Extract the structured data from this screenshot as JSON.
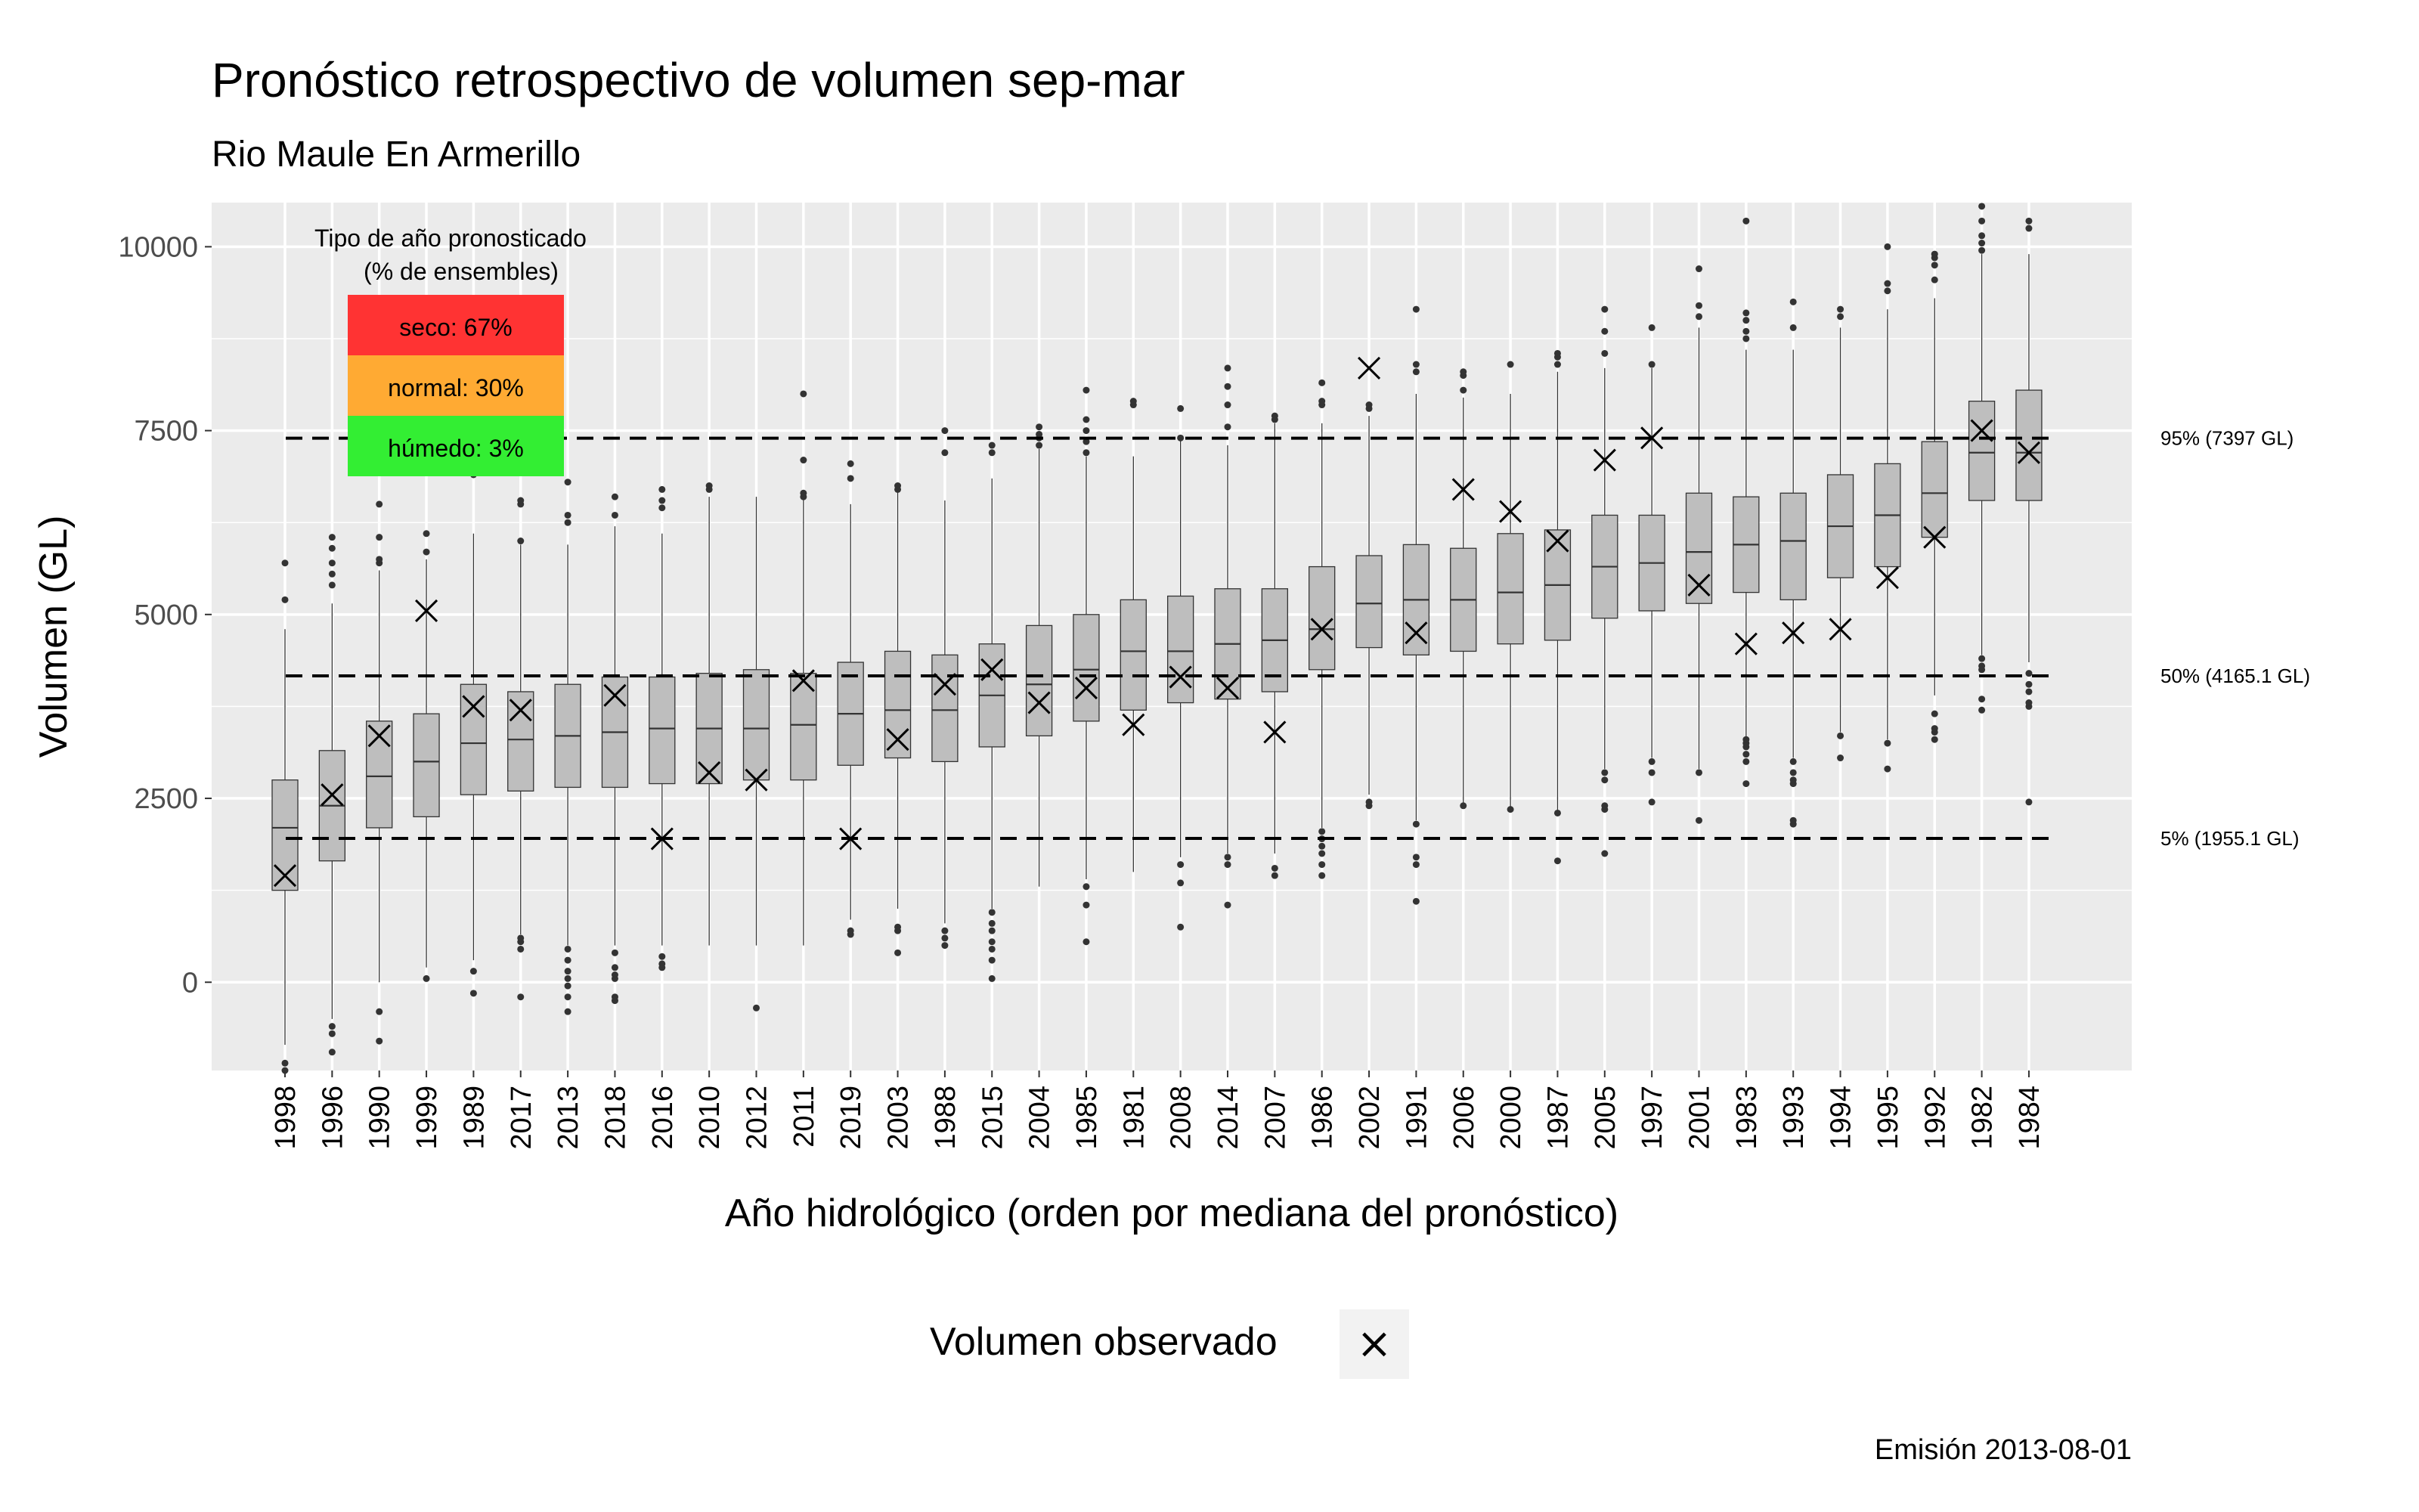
{
  "chart_data": {
    "type": "boxplot",
    "title": "Pronóstico retrospectivo de volumen sep-mar",
    "subtitle": "Rio Maule En Armerillo",
    "xlabel": "Año hidrológico (orden por mediana del pronóstico)",
    "ylabel": "Volumen (GL)",
    "ylim": [
      -1200,
      10600
    ],
    "yticks": [
      0,
      2500,
      5000,
      7500,
      10000
    ],
    "grid": true,
    "caption": "Emisión 2013-08-01",
    "highlight_category": "2013",
    "highlight_color": "#ff0000",
    "legend": {
      "title": "Volumen observado",
      "symbol": "×",
      "position": "bottom"
    },
    "info_box": {
      "title_line1": "Tipo de año pronosticado",
      "title_line2": "(% de ensembles)",
      "items": [
        {
          "label": "seco: 67%",
          "color": "#ff3333"
        },
        {
          "label": "normal: 30%",
          "color": "#ffaa33"
        },
        {
          "label": "húmedo: 3%",
          "color": "#33ee33"
        }
      ]
    },
    "reference_lines": [
      {
        "value": 7397,
        "label": "95% (7397 GL)"
      },
      {
        "value": 4165.1,
        "label": "50% (4165.1 GL)"
      },
      {
        "value": 1955.1,
        "label": "5% (1955.1 GL)"
      }
    ],
    "categories": [
      "1998",
      "1996",
      "1990",
      "1999",
      "1989",
      "2017",
      "2013",
      "2018",
      "2016",
      "2010",
      "2012",
      "2011",
      "2019",
      "2003",
      "1988",
      "2015",
      "2004",
      "1985",
      "1981",
      "2008",
      "2014",
      "2007",
      "1986",
      "2002",
      "1991",
      "2006",
      "2000",
      "1987",
      "2005",
      "1997",
      "2001",
      "1983",
      "1993",
      "1994",
      "1995",
      "1992",
      "1982",
      "1984"
    ],
    "boxes": [
      {
        "q1": 1250,
        "median": 2100,
        "q3": 2750,
        "wlo": -850,
        "whi": 4800,
        "outliers": [
          -1100,
          -1200,
          5200,
          5700
        ],
        "observed": 1450
      },
      {
        "q1": 1650,
        "median": 2400,
        "q3": 3150,
        "wlo": -500,
        "whi": 5150,
        "outliers": [
          -600,
          -700,
          -950,
          5400,
          5550,
          5700,
          5900,
          6050
        ],
        "observed": 2550
      },
      {
        "q1": 2100,
        "median": 2800,
        "q3": 3550,
        "wlo": 0,
        "whi": 5600,
        "outliers": [
          -400,
          -800,
          5700,
          5750,
          6050,
          6500
        ],
        "observed": 3350
      },
      {
        "q1": 2250,
        "median": 3000,
        "q3": 3650,
        "wlo": 200,
        "whi": 5750,
        "outliers": [
          50,
          5850,
          6100
        ],
        "observed": 5050
      },
      {
        "q1": 2550,
        "median": 3250,
        "q3": 4050,
        "wlo": 300,
        "whi": 6100,
        "outliers": [
          -150,
          150,
          6900,
          6950
        ],
        "observed": 3750
      },
      {
        "q1": 2600,
        "median": 3300,
        "q3": 3950,
        "wlo": 650,
        "whi": 5950,
        "outliers": [
          -200,
          450,
          550,
          600,
          6000,
          6500,
          6550
        ],
        "observed": 3700
      },
      {
        "q1": 2650,
        "median": 3350,
        "q3": 4050,
        "wlo": 500,
        "whi": 5950,
        "outliers": [
          -400,
          -200,
          -50,
          50,
          150,
          300,
          450,
          6250,
          6350,
          6800
        ],
        "observed": null
      },
      {
        "q1": 2650,
        "median": 3400,
        "q3": 4150,
        "wlo": 500,
        "whi": 6200,
        "outliers": [
          -250,
          -200,
          50,
          100,
          200,
          400,
          6350,
          6600
        ],
        "observed": 3900
      },
      {
        "q1": 2700,
        "median": 3450,
        "q3": 4150,
        "wlo": 500,
        "whi": 6100,
        "outliers": [
          200,
          250,
          350,
          6450,
          6550,
          6700
        ],
        "observed": 1950
      },
      {
        "q1": 2700,
        "median": 3450,
        "q3": 4200,
        "wlo": 500,
        "whi": 6600,
        "outliers": [
          6700,
          6750
        ],
        "observed": 2850
      },
      {
        "q1": 2750,
        "median": 3450,
        "q3": 4250,
        "wlo": 500,
        "whi": 6600,
        "outliers": [
          -350
        ],
        "observed": 2750
      },
      {
        "q1": 2750,
        "median": 3500,
        "q3": 4200,
        "wlo": 500,
        "whi": 6600,
        "outliers": [
          6600,
          6650,
          7100,
          8000
        ],
        "observed": 4100
      },
      {
        "q1": 2950,
        "median": 3650,
        "q3": 4350,
        "wlo": 850,
        "whi": 6500,
        "outliers": [
          650,
          700,
          6850,
          7050
        ],
        "observed": 1950
      },
      {
        "q1": 3050,
        "median": 3700,
        "q3": 4500,
        "wlo": 1000,
        "whi": 6700,
        "outliers": [
          400,
          700,
          750,
          6700,
          6750
        ],
        "observed": 3300
      },
      {
        "q1": 3000,
        "median": 3700,
        "q3": 4450,
        "wlo": 800,
        "whi": 6550,
        "outliers": [
          500,
          600,
          700,
          7200,
          7500
        ],
        "observed": 4050
      },
      {
        "q1": 3200,
        "median": 3900,
        "q3": 4600,
        "wlo": 1000,
        "whi": 6850,
        "outliers": [
          50,
          300,
          450,
          550,
          700,
          800,
          950,
          7200,
          7300
        ],
        "observed": 4250
      },
      {
        "q1": 3350,
        "median": 4050,
        "q3": 4850,
        "wlo": 1300,
        "whi": 7250,
        "outliers": [
          7300,
          7400,
          7450,
          7550
        ],
        "observed": 3800
      },
      {
        "q1": 3550,
        "median": 4250,
        "q3": 5000,
        "wlo": 1400,
        "whi": 7150,
        "outliers": [
          550,
          1050,
          1300,
          7200,
          7350,
          7500,
          7650,
          8050
        ],
        "observed": 4000
      },
      {
        "q1": 3700,
        "median": 4500,
        "q3": 5200,
        "wlo": 1500,
        "whi": 7150,
        "outliers": [
          7850,
          7900
        ],
        "observed": 3500
      },
      {
        "q1": 3800,
        "median": 4500,
        "q3": 5250,
        "wlo": 1700,
        "whi": 7400,
        "outliers": [
          750,
          1350,
          1600,
          7400,
          7800
        ],
        "observed": 4150
      },
      {
        "q1": 3850,
        "median": 4600,
        "q3": 5350,
        "wlo": 1750,
        "whi": 7300,
        "outliers": [
          1050,
          1600,
          1700,
          7550,
          7850,
          8100,
          8350
        ],
        "observed": 4000
      },
      {
        "q1": 3950,
        "median": 4650,
        "q3": 5350,
        "wlo": 1750,
        "whi": 7600,
        "outliers": [
          1450,
          1550,
          7650,
          7700
        ],
        "observed": 3400
      },
      {
        "q1": 4250,
        "median": 4800,
        "q3": 5650,
        "wlo": 2100,
        "whi": 7600,
        "outliers": [
          1450,
          1600,
          1750,
          1850,
          1950,
          2050,
          7850,
          7900,
          8150
        ],
        "observed": 4800
      },
      {
        "q1": 4550,
        "median": 5150,
        "q3": 5800,
        "wlo": 2550,
        "whi": 7700,
        "outliers": [
          2400,
          2450,
          7800,
          7850
        ],
        "observed": 8350
      },
      {
        "q1": 4450,
        "median": 5200,
        "q3": 5950,
        "wlo": 2200,
        "whi": 8000,
        "outliers": [
          1100,
          1600,
          1700,
          2150,
          8300,
          8400,
          9150
        ],
        "observed": 4750
      },
      {
        "q1": 4500,
        "median": 5200,
        "q3": 5900,
        "wlo": 2400,
        "whi": 7950,
        "outliers": [
          2400,
          8050,
          8250,
          8300
        ],
        "observed": 6700
      },
      {
        "q1": 4600,
        "median": 5300,
        "q3": 6100,
        "wlo": 2350,
        "whi": 8000,
        "outliers": [
          2350,
          8400
        ],
        "observed": 6400
      },
      {
        "q1": 4650,
        "median": 5400,
        "q3": 6150,
        "wlo": 2300,
        "whi": 8300,
        "outliers": [
          1650,
          2300,
          8400,
          8500,
          8550
        ],
        "observed": 6000
      },
      {
        "q1": 4950,
        "median": 5650,
        "q3": 6350,
        "wlo": 2900,
        "whi": 8350,
        "outliers": [
          1750,
          2350,
          2400,
          2750,
          2850,
          8550,
          8850,
          9150
        ],
        "observed": 7100
      },
      {
        "q1": 5050,
        "median": 5700,
        "q3": 6350,
        "wlo": 3050,
        "whi": 8350,
        "outliers": [
          2450,
          2850,
          3000,
          8400,
          8900
        ],
        "observed": 7400
      },
      {
        "q1": 5150,
        "median": 5850,
        "q3": 6650,
        "wlo": 2900,
        "whi": 8900,
        "outliers": [
          2200,
          2850,
          9050,
          9200,
          9700
        ],
        "observed": 5400
      },
      {
        "q1": 5300,
        "median": 5950,
        "q3": 6600,
        "wlo": 3300,
        "whi": 8600,
        "outliers": [
          2700,
          3000,
          3100,
          3200,
          3250,
          3300,
          8750,
          8850,
          9000,
          9100,
          10350
        ],
        "observed": 4600
      },
      {
        "q1": 5200,
        "median": 6000,
        "q3": 6650,
        "wlo": 3050,
        "whi": 8600,
        "outliers": [
          2150,
          2200,
          2700,
          2750,
          2850,
          3000,
          8900,
          9250
        ],
        "observed": 4750
      },
      {
        "q1": 5500,
        "median": 6200,
        "q3": 6900,
        "wlo": 3400,
        "whi": 8900,
        "outliers": [
          3050,
          3350,
          9050,
          9150
        ],
        "observed": 4800
      },
      {
        "q1": 5650,
        "median": 6350,
        "q3": 7050,
        "wlo": 3300,
        "whi": 9150,
        "outliers": [
          2900,
          3250,
          9400,
          9500,
          10000
        ],
        "observed": 5500
      },
      {
        "q1": 6050,
        "median": 6650,
        "q3": 7350,
        "wlo": 3900,
        "whi": 9300,
        "outliers": [
          3300,
          3400,
          3450,
          3650,
          9550,
          9750,
          9850,
          9900
        ],
        "observed": 6050
      },
      {
        "q1": 6550,
        "median": 7200,
        "q3": 7900,
        "wlo": 4450,
        "whi": 9900,
        "outliers": [
          3700,
          3850,
          4250,
          4300,
          4400,
          9950,
          10050,
          10150,
          10350,
          10550
        ],
        "observed": 7500
      },
      {
        "q1": 6550,
        "median": 7200,
        "q3": 8050,
        "wlo": 4350,
        "whi": 9900,
        "outliers": [
          2450,
          3750,
          3800,
          3950,
          4050,
          4200,
          10250,
          10350
        ],
        "observed": 7200
      }
    ]
  }
}
